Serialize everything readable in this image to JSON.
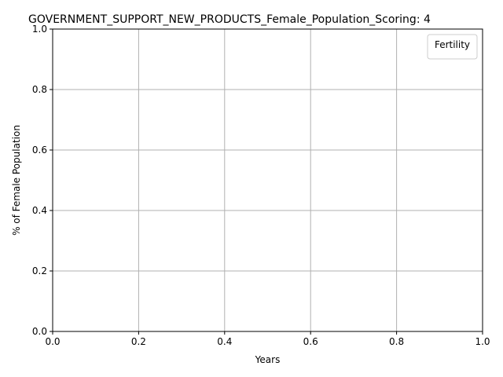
{
  "chart_data": {
    "type": "line",
    "title": "GOVERNMENT_SUPPORT_NEW_PRODUCTS_Female_Population_Scoring: 4",
    "xlabel": "Years",
    "ylabel": "% of Female Population",
    "xlim": [
      0.0,
      1.0
    ],
    "ylim": [
      0.0,
      1.0
    ],
    "x_ticks": [
      "0.0",
      "0.2",
      "0.4",
      "0.6",
      "0.8",
      "1.0"
    ],
    "y_ticks": [
      "0.0",
      "0.2",
      "0.4",
      "0.6",
      "0.8",
      "1.0"
    ],
    "grid": true,
    "legend": {
      "title": "Fertility",
      "position": "upper-right",
      "entries": []
    },
    "series": []
  }
}
